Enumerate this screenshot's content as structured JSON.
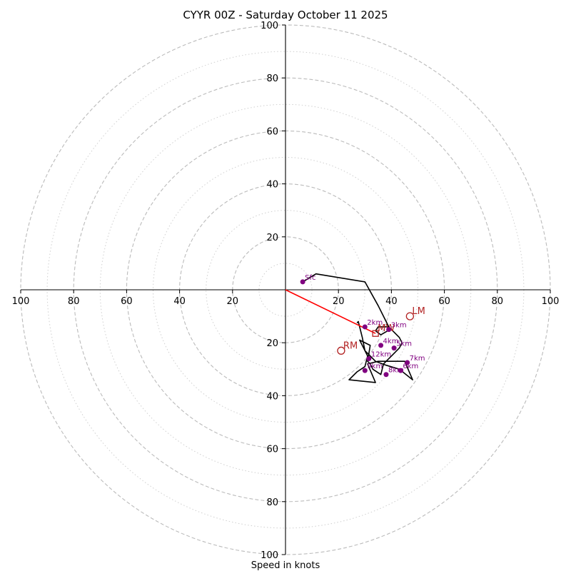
{
  "chart_data": {
    "type": "hodograph",
    "title": "CYYR 00Z - Saturday October 11 2025",
    "xlabel": "Speed in knots",
    "xlim": [
      -100,
      100
    ],
    "ylim": [
      -100,
      100
    ],
    "rings_dashed": [
      20,
      40,
      60,
      80,
      100
    ],
    "rings_dotted": [
      10,
      30,
      50,
      70,
      90
    ],
    "x_ticks": [
      {
        "value": -100,
        "label": "100"
      },
      {
        "value": -80,
        "label": "80"
      },
      {
        "value": -60,
        "label": "60"
      },
      {
        "value": -40,
        "label": "40"
      },
      {
        "value": -20,
        "label": "20"
      },
      {
        "value": 20,
        "label": "20"
      },
      {
        "value": 40,
        "label": "40"
      },
      {
        "value": 60,
        "label": "60"
      },
      {
        "value": 80,
        "label": "80"
      },
      {
        "value": 100,
        "label": "100"
      }
    ],
    "y_ticks": [
      {
        "value": 100,
        "label": "100"
      },
      {
        "value": 80,
        "label": "80"
      },
      {
        "value": 60,
        "label": "60"
      },
      {
        "value": 40,
        "label": "40"
      },
      {
        "value": 20,
        "label": "20"
      },
      {
        "value": -20,
        "label": "20"
      },
      {
        "value": -40,
        "label": "40"
      },
      {
        "value": -60,
        "label": "60"
      },
      {
        "value": -80,
        "label": "80"
      },
      {
        "value": -100,
        "label": "100"
      }
    ],
    "hodograph_trace": [
      [
        6.5,
        3
      ],
      [
        11.5,
        6
      ],
      [
        30,
        3
      ],
      [
        35,
        -6
      ],
      [
        38,
        -12
      ],
      [
        39.5,
        -15
      ],
      [
        36,
        -17
      ],
      [
        34,
        -15.5
      ],
      [
        35,
        -14
      ],
      [
        39,
        -14
      ],
      [
        43,
        -18
      ],
      [
        44,
        -20
      ],
      [
        43,
        -22
      ],
      [
        40,
        -25
      ],
      [
        38,
        -27
      ],
      [
        37,
        -28
      ],
      [
        36,
        -32
      ],
      [
        33,
        -30
      ],
      [
        32,
        -28
      ],
      [
        31,
        -27
      ],
      [
        32,
        -21
      ],
      [
        28,
        -19
      ],
      [
        31,
        -25
      ],
      [
        30,
        -29
      ],
      [
        27,
        -31
      ],
      [
        24,
        -34
      ],
      [
        34,
        -35
      ],
      [
        31,
        -28
      ],
      [
        35,
        -27
      ],
      [
        45,
        -27
      ],
      [
        48,
        -34
      ],
      [
        43,
        -30
      ],
      [
        38,
        -28.5
      ],
      [
        34,
        -27
      ],
      [
        30,
        -23
      ],
      [
        29,
        -18
      ],
      [
        27.5,
        -12
      ],
      [
        27,
        -12.5
      ]
    ],
    "height_markers": [
      {
        "label": "Sfc",
        "x": 6.5,
        "y": 3
      },
      {
        "label": "2km",
        "x": 30,
        "y": -14
      },
      {
        "label": "3km",
        "x": 39,
        "y": -15
      },
      {
        "label": "4km",
        "x": 36,
        "y": -21
      },
      {
        "label": "5km",
        "x": 41,
        "y": -22
      },
      {
        "label": "6km",
        "x": 43.5,
        "y": -30.5
      },
      {
        "label": "7km",
        "x": 46,
        "y": -27.5
      },
      {
        "label": "8km",
        "x": 38,
        "y": -32
      },
      {
        "label": "9km",
        "x": 30,
        "y": -30.5
      },
      {
        "label": "12km",
        "x": 31.5,
        "y": -26
      }
    ],
    "storm_motion": {
      "vector": {
        "x": 34,
        "y": -16.5
      },
      "bunkers_right": {
        "label": "RM",
        "x": 21,
        "y": -23
      },
      "bunkers_left": {
        "label": "LM",
        "x": 47,
        "y": -10
      },
      "mean_wind": {
        "label": "MW",
        "x": 34,
        "y": -16.5
      }
    },
    "colors": {
      "trace": "#000000",
      "height_marker": "#800080",
      "storm_motion": "#ff0000",
      "motion_marker": "#b22222",
      "ring": "#bbbbbb"
    }
  }
}
